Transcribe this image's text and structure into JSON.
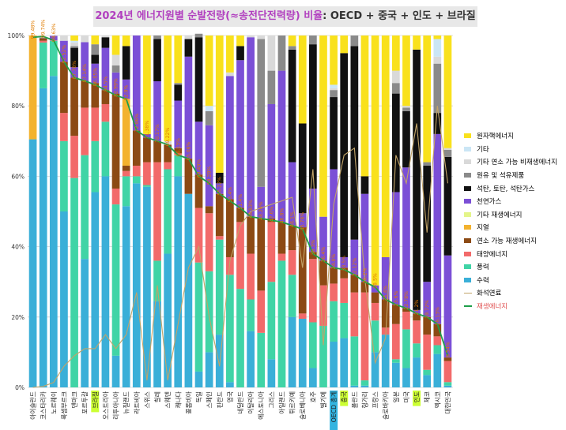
{
  "chart_data": {
    "type": "bar",
    "stacked": true,
    "title_parts": [
      "2024년 에너지원별 순발전량(≈송전단전력량) 비율",
      ": OECD + 중국 + 인도 + 브라질"
    ],
    "colors": {
      "title_main": "#b13fbf",
      "title_rest": "#333333",
      "highlight": "#ccff33",
      "highlight_oecd": "#33b4e0",
      "label_text": "#e07c00",
      "renew_line": "#1e9e4a",
      "fossil_line": "#c2a468"
    },
    "ylim": [
      0,
      100
    ],
    "yticks": [
      "0%",
      "20%",
      "40%",
      "60%",
      "80%",
      "100%"
    ],
    "highlighted": {
      "브라질": "yellow",
      "OECD 총계": "blue",
      "중국": "yellow",
      "인도": "yellow"
    },
    "stack_order": [
      "수력",
      "풍력",
      "태양에너지",
      "연소 가능 재생에너지",
      "지열",
      "기타 재생에너지",
      "천연가스",
      "석탄, 토탄, 석탄가스",
      "원유 및 석유제품",
      "기타 연소 가능 비재생에너지",
      "기타",
      "원자핵에너지"
    ],
    "series_colors": {
      "수력": "#3aafd8",
      "풍력": "#40d4a6",
      "태양에너지": "#f26a6a",
      "연소 가능 재생에너지": "#8c4a14",
      "지열": "#f3b22e",
      "기타 재생에너지": "#e4f58a",
      "천연가스": "#7b4fd6",
      "석탄, 토탄, 석탄가스": "#111111",
      "원유 및 석유제품": "#8a8a8a",
      "기타 연소 가능 비재생에너지": "#d9d9d9",
      "기타": "#cbe6f5",
      "원자핵에너지": "#f9e11c"
    },
    "legend": [
      {
        "label": "원자핵에너지",
        "kind": "bar"
      },
      {
        "label": "기타",
        "kind": "bar"
      },
      {
        "label": "기타 연소 가능 비재생에너지",
        "kind": "bar"
      },
      {
        "label": "원유 및 석유제품",
        "kind": "bar"
      },
      {
        "label": "석탄, 토탄, 석탄가스",
        "kind": "bar"
      },
      {
        "label": "천연가스",
        "kind": "bar"
      },
      {
        "label": "기타 재생에너지",
        "kind": "bar"
      },
      {
        "label": "지열",
        "kind": "bar"
      },
      {
        "label": "연소 가능 재생에너지",
        "kind": "bar"
      },
      {
        "label": "태양에너지",
        "kind": "bar"
      },
      {
        "label": "풍력",
        "kind": "bar"
      },
      {
        "label": "수력",
        "kind": "bar"
      },
      {
        "label": "화석연료",
        "kind": "line-fossil"
      },
      {
        "label": "재생에너지",
        "kind": "line-renew"
      }
    ],
    "categories": [
      "아이슬란드",
      "코스타리카",
      "노르웨이",
      "룩셈부르크",
      "덴마크",
      "포르투갈",
      "브라질",
      "오스트리아",
      "리투아니아",
      "뉴질랜드",
      "라트비아",
      "스위스",
      "칠레",
      "스웨덴",
      "캐나다",
      "콜롬비아",
      "독일",
      "스페인",
      "핀란드",
      "영국",
      "네덜란드",
      "이탈리아",
      "에스토니아",
      "그리스",
      "아일랜드",
      "튀르키예",
      "슬로베니아",
      "호주",
      "벨기에",
      "OECD 총계",
      "중국",
      "폴란드",
      "헝가리",
      "프랑스",
      "슬로바키아",
      "일본",
      "미국",
      "인도",
      "체코",
      "멕시코",
      "대한민국"
    ],
    "renewable_pct": [
      99.48,
      99.74,
      98.63,
      92.52,
      88.0,
      87.1,
      86.0,
      84.5,
      83.0,
      82.0,
      73.0,
      71.0,
      70.0,
      69.0,
      66.0,
      65.0,
      60.0,
      58.0,
      55.0,
      53.0,
      51.0,
      48.5,
      48.0,
      47.5,
      47.0,
      46.0,
      45.0,
      38.0,
      36.0,
      34.0,
      33.5,
      32.0,
      30.0,
      28.5,
      25.0,
      23.5,
      22.5,
      21.0,
      20.0,
      18.0,
      9.0
    ],
    "renewable_labels": [
      "99.48%",
      "99.74%",
      "98.63%",
      "92.52%",
      "87.78%",
      "87.14%",
      "86.05%",
      "84.5%",
      "82.99%",
      "82.0%",
      "72.96%",
      "71.38%",
      "70.17%",
      "69.22%",
      "66.13%",
      "65.08%",
      "60.49%",
      "58.28%",
      "55.22%",
      "53.4%",
      "51.4%",
      "48.83%",
      "48.26%",
      "47.6%",
      "46.8%",
      "46.1%",
      "45.76%",
      "38.3%",
      "36.4%",
      "34.0%",
      "33.5%",
      "32.12%",
      "30.2%",
      "28.5%",
      "25.4%",
      "23.6%",
      "22.78%",
      "21.2%",
      "19.72%",
      "18.13%",
      "8.54%"
    ],
    "fossil_pct": [
      0.0,
      0.3,
      1.4,
      6.0,
      9.0,
      11.0,
      11.0,
      15.0,
      11.0,
      15.0,
      27.0,
      2.0,
      29.0,
      2.0,
      18.0,
      34.0,
      40.0,
      20.0,
      6.0,
      36.0,
      46.0,
      50.0,
      51.0,
      52.0,
      53.0,
      54.0,
      34.0,
      62.0,
      12.0,
      52.0,
      66.0,
      68.0,
      31.0,
      7.0,
      14.0,
      66.0,
      58.0,
      75.0,
      44.0,
      80.0,
      58.0
    ],
    "shares": [
      [
        70.5,
        0,
        0,
        0,
        29.5,
        0,
        0,
        0,
        0,
        0,
        0,
        0
      ],
      [
        85.0,
        13.0,
        0.5,
        0.7,
        0,
        0,
        0,
        0,
        0.2,
        0,
        0,
        0
      ],
      [
        88.5,
        10.0,
        0.1,
        0,
        0,
        0,
        1.3,
        0,
        0,
        0.1,
        0,
        0
      ],
      [
        50.0,
        20.0,
        8.0,
        14.5,
        0,
        0,
        6.0,
        0,
        0,
        1.5,
        0,
        0
      ],
      [
        0,
        59.5,
        12.0,
        16.5,
        0,
        0,
        3.0,
        5.5,
        0.5,
        1.0,
        0.5,
        1.5
      ],
      [
        36.5,
        29.5,
        13.5,
        7.6,
        0,
        0,
        11.0,
        0,
        0,
        1.9,
        0,
        0
      ],
      [
        55.5,
        14.5,
        9.5,
        7.0,
        0,
        0,
        5.5,
        2.5,
        3.0,
        0,
        0,
        2.5
      ],
      [
        60.0,
        15.5,
        5.0,
        4.0,
        0,
        0,
        12.0,
        3.0,
        0,
        0.5,
        0,
        0
      ],
      [
        9.0,
        43.0,
        4.5,
        27.0,
        0,
        0,
        6.0,
        0,
        2.0,
        3.0,
        0,
        5.5
      ],
      [
        51.5,
        8.5,
        1.5,
        1.5,
        19.0,
        0,
        5.5,
        9.5,
        0,
        0,
        0,
        3.0
      ],
      [
        58.0,
        2.0,
        3.0,
        10.0,
        0,
        0,
        27.0,
        0,
        0,
        0,
        0,
        0
      ],
      [
        57.0,
        0.5,
        6.5,
        7.0,
        0,
        0,
        1.0,
        0,
        0,
        0,
        0,
        28.0
      ],
      [
        24.5,
        11.5,
        28.0,
        6.0,
        0,
        0,
        17.0,
        12.0,
        1.0,
        0,
        0,
        0
      ],
      [
        38.0,
        24.0,
        2.0,
        5.0,
        0,
        0,
        0,
        0,
        0,
        1.0,
        0,
        30.0
      ],
      [
        60.0,
        6.0,
        0.5,
        1.5,
        0,
        0,
        13.5,
        4.5,
        0.5,
        0,
        0,
        13.5
      ],
      [
        55.0,
        0,
        0,
        10.0,
        0,
        0,
        29.0,
        5.0,
        0,
        1.0,
        0,
        0
      ],
      [
        4.5,
        31.0,
        15.5,
        9.5,
        0,
        0,
        15.0,
        24.0,
        1.0,
        0,
        0,
        0
      ],
      [
        10.0,
        23.0,
        16.5,
        2.0,
        0,
        0,
        23.0,
        0,
        4.0,
        0,
        1.5,
        20.0
      ],
      [
        15.0,
        27.0,
        1.0,
        12.0,
        0,
        0,
        3.0,
        3.0,
        0,
        0,
        0,
        39.0
      ],
      [
        1.5,
        30.5,
        5.0,
        16.5,
        0,
        0,
        35.0,
        0,
        0,
        1.0,
        0,
        10.5
      ],
      [
        0,
        28.0,
        19.0,
        4.0,
        0,
        0,
        42.0,
        4.0,
        0,
        0,
        0,
        3.0
      ],
      [
        16.0,
        9.0,
        13.0,
        10.5,
        0,
        0,
        51.0,
        0,
        0,
        0.5,
        0,
        0
      ],
      [
        0,
        15.5,
        12.0,
        20.5,
        0,
        0,
        9.0,
        0,
        42.0,
        1.0,
        0,
        0
      ],
      [
        8.0,
        22.0,
        17.0,
        1.0,
        0,
        0,
        32.5,
        0,
        9.5,
        10.0,
        0,
        0
      ],
      [
        0,
        36.0,
        2.0,
        9.0,
        0,
        0,
        43.0,
        0,
        10.0,
        0,
        0,
        0
      ],
      [
        20.0,
        12.0,
        7.0,
        7.0,
        0,
        0,
        18.0,
        32.0,
        1.0,
        0,
        0,
        3.0
      ],
      [
        19.5,
        0,
        1.5,
        24.5,
        0,
        0,
        4.0,
        25.5,
        0,
        0,
        0,
        25.0
      ],
      [
        5.5,
        13.0,
        18.0,
        2.0,
        0,
        0,
        18.0,
        41.0,
        2.5,
        0,
        0,
        0
      ],
      [
        0,
        17.5,
        11.5,
        7.0,
        0,
        0,
        12.5,
        0,
        0,
        0,
        0,
        51.5
      ],
      [
        13.0,
        11.5,
        5.0,
        4.5,
        0,
        0,
        28.0,
        20.5,
        2.0,
        0.5,
        1.0,
        14.0
      ],
      [
        14.0,
        10.0,
        7.0,
        3.0,
        0,
        0,
        3.0,
        58.0,
        0,
        0,
        0,
        5.0
      ],
      [
        0.5,
        14.0,
        12.5,
        5.0,
        0,
        0,
        10.0,
        55.0,
        3.0,
        0,
        0,
        0
      ],
      [
        0.5,
        1.5,
        25.0,
        3.0,
        0,
        0,
        25.0,
        5.0,
        0,
        0,
        0,
        40.0
      ],
      [
        10.0,
        9.0,
        5.0,
        3.0,
        0,
        0,
        2.0,
        0,
        0,
        0,
        0,
        71.0
      ],
      [
        15.0,
        0,
        2.0,
        8.0,
        0,
        0,
        12.0,
        0,
        0,
        0,
        0,
        63.0
      ],
      [
        7.0,
        1.0,
        10.0,
        5.5,
        0,
        0,
        32.0,
        28.0,
        3.0,
        3.5,
        0,
        10.0
      ],
      [
        5.5,
        11.0,
        5.0,
        1.0,
        0,
        0,
        40.0,
        16.0,
        1.0,
        0.5,
        0,
        20.0
      ],
      [
        8.5,
        4.0,
        6.5,
        2.0,
        0,
        0,
        1.0,
        74.0,
        0,
        0,
        0,
        4.0
      ],
      [
        3.5,
        1.5,
        10.0,
        5.0,
        0,
        0,
        10.0,
        33.0,
        1.0,
        0,
        0,
        36.0
      ],
      [
        9.5,
        2.5,
        2.5,
        3.5,
        0,
        0,
        54.0,
        6.0,
        14.0,
        2.0,
        5.0,
        1.0
      ],
      [
        0.5,
        1.0,
        6.0,
        1.0,
        0,
        0,
        29.0,
        28.0,
        2.0,
        0.5,
        0,
        32.0
      ]
    ]
  }
}
